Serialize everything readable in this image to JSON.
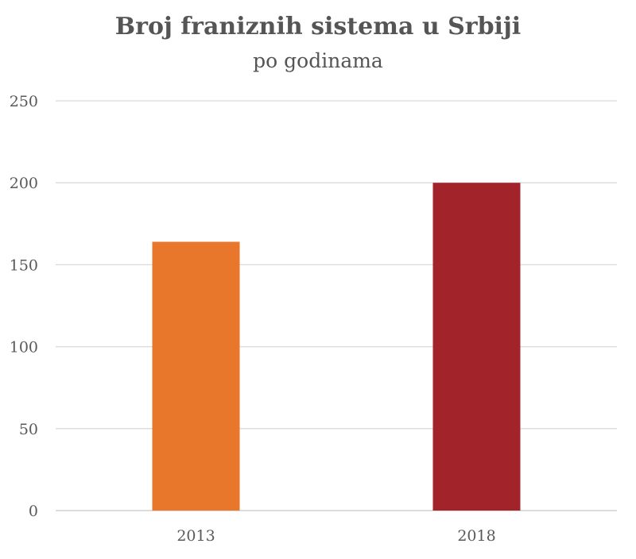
{
  "chart_data": {
    "type": "bar",
    "title": "Broj franiznih sistema u Srbiji",
    "subtitle": "po godinama",
    "categories": [
      "2013",
      "2018"
    ],
    "values": [
      164,
      200
    ],
    "colors": [
      "#E8772B",
      "#A2242A"
    ],
    "ylim": [
      0,
      250
    ],
    "yticks": [
      0,
      50,
      100,
      150,
      200,
      250
    ],
    "grid": true,
    "legend": "none"
  }
}
